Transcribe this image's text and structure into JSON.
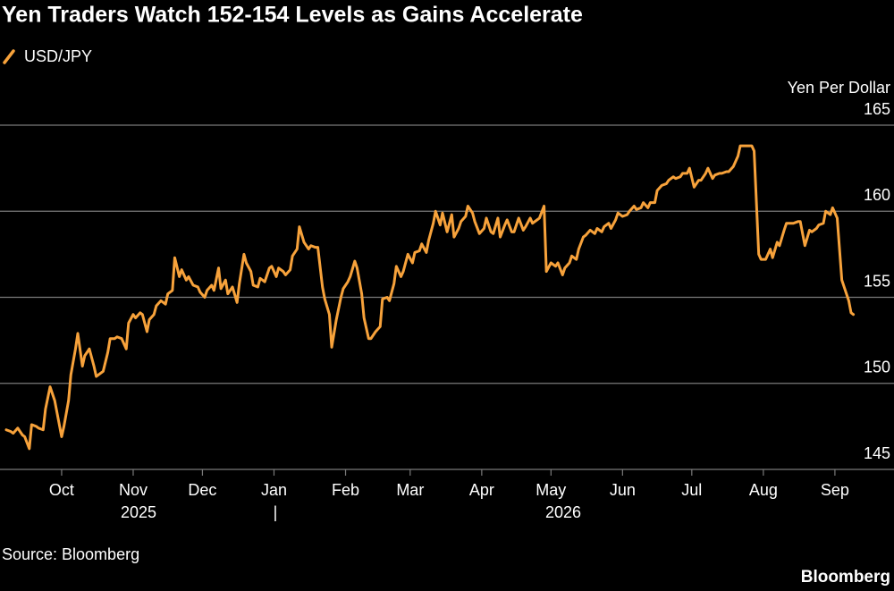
{
  "chart_data": {
    "type": "line",
    "title": "Yen Traders Watch 152-154 Levels as Gains Accelerate",
    "y_axis_label": "Yen Per Dollar",
    "source": "Source: Bloomberg",
    "brand": "Bloomberg",
    "year_labels": [
      "2025",
      "|",
      "2026"
    ],
    "grid": true,
    "xlim": [
      -26.7,
      360.6
    ],
    "xticks": [
      {
        "value": 0,
        "label": "Oct"
      },
      {
        "value": 31,
        "label": "Nov"
      },
      {
        "value": 61,
        "label": "Dec"
      },
      {
        "value": 92,
        "label": "Jan"
      },
      {
        "value": 123,
        "label": "Feb"
      },
      {
        "value": 151,
        "label": "Mar"
      },
      {
        "value": 182,
        "label": "Apr"
      },
      {
        "value": 212,
        "label": "May"
      },
      {
        "value": 243,
        "label": "Jun"
      },
      {
        "value": 273,
        "label": "Jul"
      },
      {
        "value": 304,
        "label": "Aug"
      },
      {
        "value": 335,
        "label": "Sep"
      }
    ],
    "ylim": [
      145,
      165
    ],
    "yticks": [
      145,
      150,
      155,
      160,
      165
    ],
    "x": [
      -24,
      -22,
      -21,
      -19,
      -17,
      -16,
      -14,
      -13,
      -11,
      -10,
      -8,
      -7,
      -5,
      -3,
      -2,
      0,
      1,
      3,
      4,
      6,
      7,
      9,
      10,
      12,
      14,
      15,
      17,
      18,
      20,
      21,
      23,
      24,
      26,
      28,
      29,
      31,
      32,
      34,
      35,
      37,
      38,
      40,
      41,
      43,
      45,
      46,
      48,
      49,
      51,
      52,
      54,
      55,
      57,
      59,
      60,
      62,
      63,
      65,
      66,
      68,
      69,
      71,
      72,
      74,
      76,
      77,
      79,
      80,
      82,
      83,
      85,
      86,
      88,
      90,
      91,
      93,
      94,
      96,
      97,
      99,
      100,
      102,
      103,
      105,
      107,
      108,
      110,
      111,
      113,
      114,
      116,
      117,
      119,
      121,
      122,
      124,
      125,
      127,
      128,
      130,
      131,
      133,
      134,
      136,
      138,
      139,
      141,
      142,
      144,
      145,
      147,
      148,
      150,
      152,
      153,
      155,
      156,
      158,
      159,
      161,
      162,
      164,
      165,
      167,
      169,
      170,
      172,
      173,
      175,
      176,
      178,
      179,
      181,
      183,
      184,
      186,
      187,
      189,
      190,
      192,
      193,
      195,
      196,
      198,
      200,
      201,
      203,
      204,
      206,
      207,
      209,
      210,
      212,
      214,
      215,
      217,
      218,
      220,
      221,
      223,
      224,
      226,
      227,
      229,
      231,
      232,
      234,
      235,
      237,
      238,
      240,
      241,
      243,
      245,
      246,
      248,
      249,
      251,
      252,
      254,
      255,
      257,
      258,
      260,
      262,
      263,
      265,
      266,
      268,
      269,
      271,
      272,
      274,
      276,
      277,
      279,
      280,
      282,
      283,
      285,
      286,
      288,
      289,
      291,
      293,
      294,
      296,
      297,
      299,
      300,
      302,
      303,
      305,
      307,
      308,
      310,
      311,
      313,
      314,
      316,
      317,
      319,
      320,
      322,
      324,
      325,
      327,
      328,
      330,
      331,
      333,
      334,
      336,
      338,
      339,
      341,
      342,
      343
    ],
    "series": [
      {
        "name": "USD/JPY",
        "color": "#f7a23b",
        "values": [
          147.3,
          147.2,
          147.1,
          147.4,
          147.0,
          146.9,
          146.2,
          147.6,
          147.5,
          147.4,
          147.3,
          148.5,
          149.8,
          149.0,
          148.3,
          146.9,
          147.5,
          149.0,
          150.5,
          152.0,
          152.9,
          151.0,
          151.6,
          152.0,
          151.0,
          150.4,
          150.6,
          150.7,
          151.8,
          152.6,
          152.6,
          152.7,
          152.6,
          152.0,
          153.5,
          154.0,
          153.8,
          154.1,
          154.0,
          153.0,
          153.7,
          154.0,
          154.5,
          154.8,
          154.6,
          155.2,
          155.4,
          157.3,
          156.2,
          156.6,
          156.0,
          156.2,
          155.7,
          155.6,
          155.3,
          155.0,
          155.4,
          155.7,
          155.4,
          156.7,
          155.5,
          156.0,
          155.2,
          155.6,
          154.7,
          155.8,
          157.5,
          157.0,
          156.5,
          155.7,
          155.6,
          156.1,
          155.9,
          156.7,
          156.8,
          156.2,
          156.7,
          156.5,
          156.3,
          156.6,
          157.4,
          157.8,
          159.1,
          158.2,
          157.8,
          158.0,
          157.9,
          157.9,
          155.6,
          154.9,
          154.0,
          152.1,
          153.7,
          155.0,
          155.5,
          155.9,
          156.2,
          157.1,
          156.7,
          155.2,
          153.8,
          152.6,
          152.6,
          153.0,
          153.3,
          154.9,
          155.0,
          154.8,
          155.8,
          156.8,
          156.2,
          156.5,
          157.5,
          157.0,
          157.6,
          157.7,
          158.1,
          157.6,
          158.3,
          159.3,
          160.0,
          159.2,
          159.9,
          158.8,
          159.8,
          158.5,
          159.0,
          159.4,
          159.7,
          160.3,
          159.9,
          159.4,
          158.7,
          159.0,
          159.6,
          158.8,
          158.7,
          159.6,
          158.5,
          159.2,
          159.5,
          158.8,
          158.8,
          159.6,
          158.9,
          159.1,
          159.6,
          159.3,
          159.5,
          159.6,
          160.3,
          156.5,
          157.0,
          156.8,
          157.0,
          156.3,
          156.7,
          157.0,
          157.4,
          157.2,
          157.8,
          158.5,
          158.6,
          158.9,
          158.7,
          159.0,
          158.8,
          159.1,
          159.3,
          159.0,
          159.5,
          159.9,
          159.7,
          159.8,
          160.0,
          160.3,
          160.1,
          160.2,
          160.5,
          160.2,
          160.5,
          160.5,
          161.2,
          161.5,
          161.6,
          161.8,
          162.0,
          161.9,
          162.0,
          162.2,
          162.2,
          162.5,
          161.4,
          161.8,
          161.8,
          162.2,
          162.5,
          161.9,
          162.1,
          162.2,
          162.2,
          162.3,
          162.3,
          162.6,
          163.2,
          163.8,
          163.8,
          163.8,
          163.8,
          163.5,
          157.5,
          157.2,
          157.2,
          157.8,
          157.3,
          158.2,
          158.0,
          158.9,
          159.3,
          159.3,
          159.3,
          159.4,
          159.4,
          158.0,
          158.9,
          158.8,
          159.0,
          159.2,
          159.3,
          160.0,
          159.8,
          160.2,
          159.6,
          156.0,
          155.6,
          154.8,
          154.1,
          154.0
        ]
      }
    ]
  }
}
